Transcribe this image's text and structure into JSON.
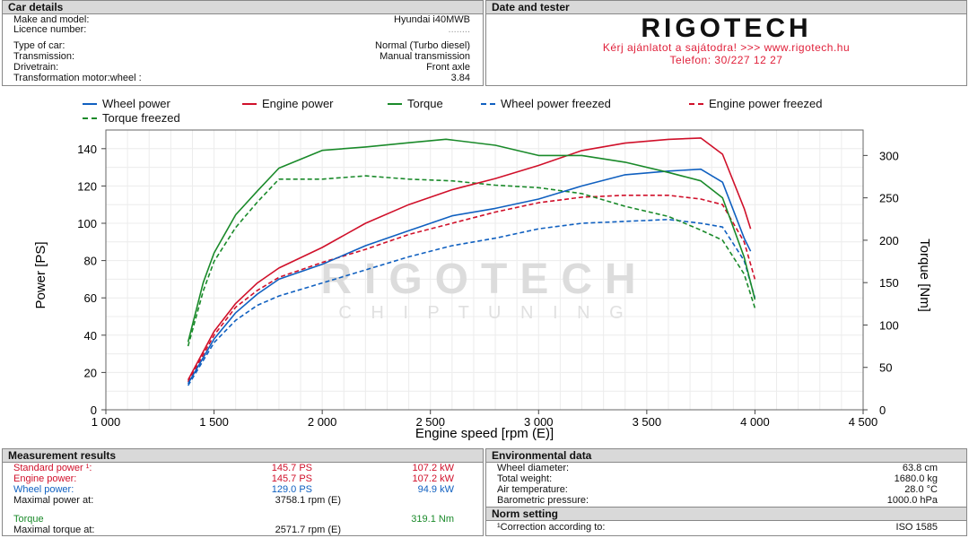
{
  "car_details": {
    "header": "Car details",
    "rows": [
      {
        "label": "Make and model:",
        "value": "Hyundai i40MWB"
      },
      {
        "label": "Licence number:",
        "value": "........"
      },
      {
        "label": "Type of car:",
        "value": "Normal (Turbo diesel)"
      },
      {
        "label": "Transmission:",
        "value": "Manual transmission"
      },
      {
        "label": "Drivetrain:",
        "value": "Front axle"
      },
      {
        "label": "Transformation motor:wheel :",
        "value": "3.84"
      }
    ]
  },
  "date_tester": {
    "header": "Date and tester",
    "logo": "RIGOTECH",
    "line1": "Kérj ajánlatot a sajátodra!  >>>  www.rigotech.hu",
    "line2": "Telefon: 30/227 12 27"
  },
  "watermark": {
    "main": "RIGOTECH",
    "sub": "C H I P T U N I N G"
  },
  "colors": {
    "wheel": "#1060c0",
    "engine": "#d0102a",
    "torque": "#1a8a2a"
  },
  "chart_data": {
    "type": "line",
    "xlabel": "Engine speed [rpm (E)]",
    "ylabel": "Power [PS]",
    "y2label": "Torque [Nm]",
    "xlim": [
      1000,
      4500
    ],
    "ylim": [
      0,
      150
    ],
    "y2lim": [
      0,
      330
    ],
    "xticks": [
      1000,
      1500,
      2000,
      2500,
      3000,
      3500,
      4000,
      4500
    ],
    "xtick_labels": [
      "1 000",
      "1 500",
      "2 000",
      "2 500",
      "3 000",
      "3 500",
      "4 000",
      "4 500"
    ],
    "yticks": [
      0,
      20,
      40,
      60,
      80,
      100,
      120,
      140
    ],
    "y2ticks": [
      0,
      50,
      100,
      150,
      200,
      250,
      300
    ],
    "grid": true,
    "legend_position": "top",
    "series": [
      {
        "name": "Wheel power",
        "axis": "left",
        "style": "solid",
        "color": "#1060c0",
        "x": [
          1380,
          1500,
          1600,
          1700,
          1800,
          2000,
          2200,
          2400,
          2600,
          2800,
          3000,
          3200,
          3400,
          3600,
          3750,
          3850,
          3950,
          3980
        ],
        "y": [
          14,
          38,
          52,
          62,
          70,
          78,
          88,
          96,
          104,
          108,
          113,
          120,
          126,
          128,
          129,
          122,
          92,
          85
        ]
      },
      {
        "name": "Engine power",
        "axis": "left",
        "style": "solid",
        "color": "#d0102a",
        "x": [
          1380,
          1500,
          1600,
          1700,
          1800,
          2000,
          2200,
          2400,
          2600,
          2800,
          3000,
          3200,
          3400,
          3600,
          3750,
          3850,
          3950,
          3980
        ],
        "y": [
          16,
          42,
          57,
          68,
          76,
          87,
          100,
          110,
          118,
          124,
          131,
          139,
          143,
          145,
          145.7,
          137,
          108,
          97
        ]
      },
      {
        "name": "Torque",
        "axis": "right",
        "style": "solid",
        "color": "#1a8a2a",
        "x": [
          1380,
          1450,
          1500,
          1600,
          1700,
          1800,
          2000,
          2200,
          2400,
          2572,
          2800,
          3000,
          3200,
          3400,
          3600,
          3750,
          3850,
          3950,
          4000
        ],
        "y": [
          80,
          150,
          185,
          230,
          258,
          285,
          306,
          310,
          315,
          319.1,
          312,
          300,
          300,
          292,
          280,
          270,
          250,
          180,
          130
        ]
      },
      {
        "name": "Wheel power freezed",
        "axis": "left",
        "style": "dashed",
        "color": "#1060c0",
        "x": [
          1380,
          1500,
          1600,
          1700,
          1800,
          2000,
          2200,
          2400,
          2600,
          2800,
          3000,
          3200,
          3400,
          3600,
          3750,
          3850,
          3950,
          4000
        ],
        "y": [
          13,
          36,
          48,
          56,
          61,
          68,
          75,
          82,
          88,
          92,
          97,
          100,
          101,
          102,
          100,
          98,
          80,
          60
        ]
      },
      {
        "name": "Engine power freezed",
        "axis": "left",
        "style": "dashed",
        "color": "#d0102a",
        "x": [
          1380,
          1500,
          1600,
          1700,
          1800,
          2000,
          2200,
          2400,
          2600,
          2800,
          3000,
          3200,
          3400,
          3600,
          3750,
          3850,
          3950,
          4000
        ],
        "y": [
          15,
          40,
          55,
          64,
          71,
          79,
          86,
          94,
          100,
          106,
          111,
          114,
          115,
          115,
          113,
          110,
          90,
          70
        ]
      },
      {
        "name": "Torque freezed",
        "axis": "right",
        "style": "dashed",
        "color": "#1a8a2a",
        "x": [
          1380,
          1450,
          1500,
          1600,
          1700,
          1800,
          2000,
          2200,
          2400,
          2600,
          2800,
          3000,
          3200,
          3400,
          3600,
          3750,
          3850,
          3950,
          4000
        ],
        "y": [
          75,
          140,
          175,
          215,
          245,
          272,
          272,
          276,
          272,
          270,
          265,
          262,
          255,
          240,
          228,
          212,
          200,
          160,
          120
        ]
      }
    ]
  },
  "measurement": {
    "header": "Measurement results",
    "rows": [
      {
        "label": "Standard power ¹:",
        "ps": "145.7 PS",
        "kw": "107.2 kW",
        "color": "red"
      },
      {
        "label": "Engine power:",
        "ps": "145.7 PS",
        "kw": "107.2 kW",
        "color": "red"
      },
      {
        "label": "Wheel power:",
        "ps": "129.0 PS",
        "kw": "94.9 kW",
        "color": "blue"
      }
    ],
    "max_power_label": "Maximal power at:",
    "max_power_value": "3758.1 rpm (E)",
    "torque_label": "Torque",
    "torque_value": "319.1 Nm",
    "max_torque_label": "Maximal torque at:",
    "max_torque_value": "2571.7 rpm (E)"
  },
  "environment": {
    "header": "Environmental data",
    "rows": [
      {
        "label": "Wheel diameter:",
        "value": "63.8 cm"
      },
      {
        "label": "Total weight:",
        "value": "1680.0 kg"
      },
      {
        "label": "Air temperature:",
        "value": "28.0 °C"
      },
      {
        "label": "Barometric pressure:",
        "value": "1000.0 hPa"
      }
    ]
  },
  "norm": {
    "header": "Norm setting",
    "label": "¹Correction according to:",
    "value": "ISO 1585"
  }
}
